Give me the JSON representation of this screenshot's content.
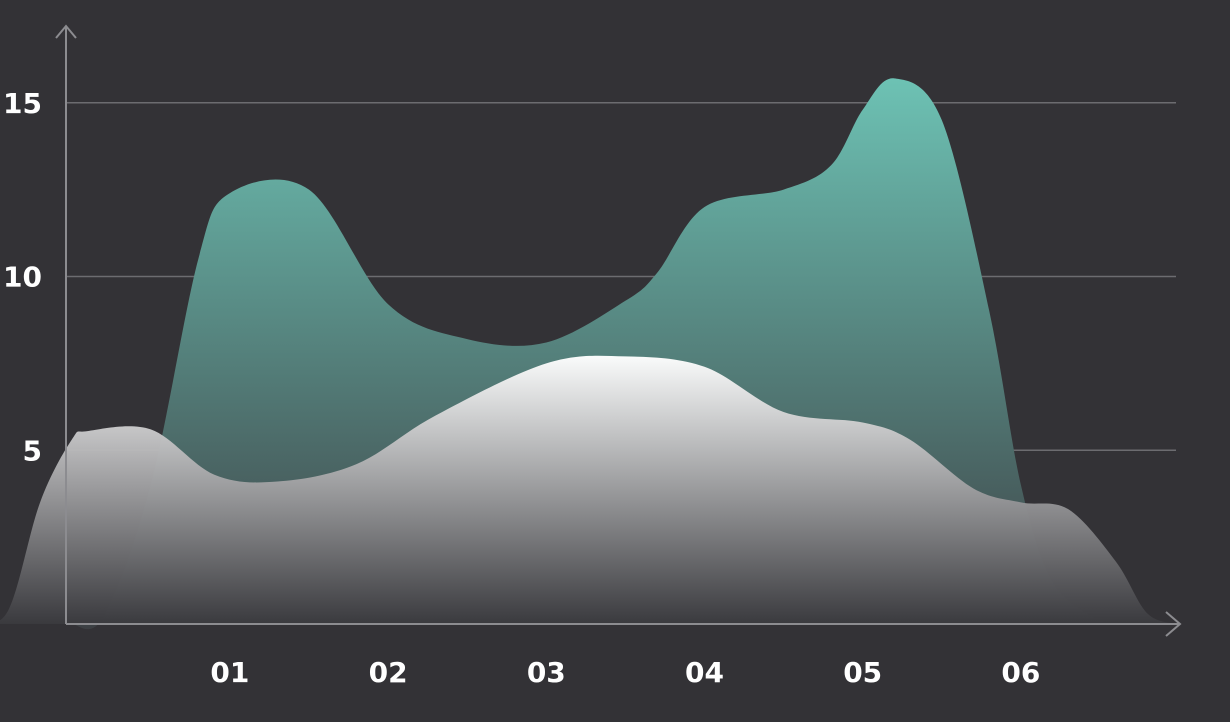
{
  "chart_data": {
    "type": "area",
    "categories": [
      "01",
      "02",
      "03",
      "04",
      "05",
      "06"
    ],
    "x_ticks": [
      "01",
      "02",
      "03",
      "04",
      "05",
      "06"
    ],
    "y_ticks": [
      "5",
      "10",
      "15"
    ],
    "ylim": [
      0,
      17
    ],
    "grid": "horizontal",
    "legend": "none",
    "series": [
      {
        "style": "teal-gradient",
        "color_top": "#6dc2b4",
        "color_bottom": "#3c3f43",
        "x": [
          0.0,
          0.2,
          0.5,
          0.8,
          1.0,
          1.5,
          2.0,
          2.5,
          3.0,
          3.5,
          3.7,
          4.0,
          4.5,
          4.8,
          5.0,
          5.2,
          5.5,
          5.8,
          6.0,
          6.2,
          6.5,
          6.7
        ],
        "y": [
          0.0,
          0.2,
          4.0,
          10.5,
          12.4,
          12.5,
          9.2,
          8.2,
          8.1,
          9.3,
          10.1,
          12.0,
          12.5,
          13.2,
          14.8,
          15.7,
          14.5,
          9.0,
          4.0,
          1.2,
          0.1,
          0.0
        ]
      },
      {
        "style": "white-gradient",
        "color_top": "#ffffff",
        "color_bottom": "#3a3a3e",
        "x": [
          -0.6,
          -0.4,
          -0.2,
          0.0,
          0.1,
          0.5,
          0.9,
          1.3,
          1.8,
          2.3,
          3.0,
          3.5,
          4.0,
          4.5,
          5.0,
          5.3,
          5.7,
          6.0,
          6.3,
          6.6,
          6.8,
          7.0
        ],
        "y": [
          0.0,
          0.4,
          3.5,
          5.3,
          5.55,
          5.6,
          4.3,
          4.1,
          4.6,
          6.0,
          7.5,
          7.7,
          7.4,
          6.1,
          5.8,
          5.3,
          3.9,
          3.5,
          3.3,
          1.8,
          0.3,
          0.0
        ]
      }
    ]
  },
  "colors": {
    "background": "#333236",
    "axis": "#8c8c90",
    "grid": "#6c6c70",
    "tick_text": "#ffffff"
  }
}
